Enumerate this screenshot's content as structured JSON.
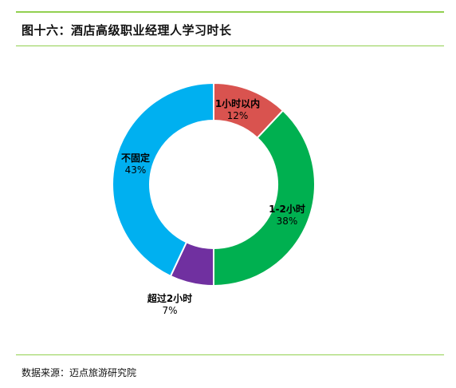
{
  "title": "图十六：酒店高级职业经理人学习时长",
  "source": "数据来源：迈点旅游研究院",
  "chart_data": {
    "type": "pie",
    "donut": true,
    "slices": [
      {
        "label": "1小时以内",
        "value": 12,
        "display": "12%",
        "color": "#d9534f"
      },
      {
        "label": "1-2小时",
        "value": 38,
        "display": "38%",
        "color": "#00b050"
      },
      {
        "label": "超过2小时",
        "value": 7,
        "display": "7%",
        "color": "#7030a0"
      },
      {
        "label": "不固定",
        "value": 43,
        "display": "43%",
        "color": "#00b0f0"
      }
    ]
  }
}
